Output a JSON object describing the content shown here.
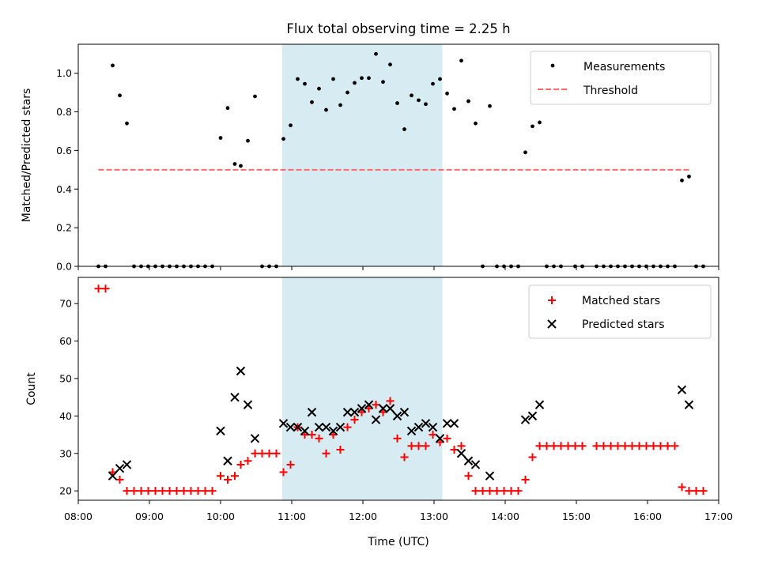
{
  "chart_data": [
    {
      "type": "scatter",
      "title": "Flux total observing time = 2.25 h",
      "xlabel": "",
      "ylabel": "Matched/Predicted stars",
      "xlim": [
        "08:00",
        "17:00"
      ],
      "ylim": [
        0,
        1.15
      ],
      "yticks": [
        0.0,
        0.2,
        0.4,
        0.6,
        0.8,
        1.0
      ],
      "ytick_labels": [
        "0.0",
        "0.2",
        "0.4",
        "0.6",
        "0.8",
        "1.0"
      ],
      "shaded_region": {
        "x": [
          "10:52",
          "13:07"
        ],
        "color": "#add8e6"
      },
      "legend": {
        "placement": "top-right",
        "entries": [
          "Measurements",
          "Threshold"
        ]
      },
      "threshold": {
        "name": "Threshold",
        "x": [
          "08:17",
          "16:37"
        ],
        "y": 0.5,
        "color": "#ff6b6b",
        "style": "dashed"
      },
      "series": [
        {
          "name": "Measurements",
          "color": "#000000",
          "points": [
            [
              "08:17",
              0
            ],
            [
              "08:23",
              0
            ],
            [
              "08:29",
              1.04
            ],
            [
              "08:35",
              0.885
            ],
            [
              "08:41",
              0.74
            ],
            [
              "08:47",
              0
            ],
            [
              "08:53",
              0
            ],
            [
              "08:59",
              0
            ],
            [
              "09:05",
              0
            ],
            [
              "09:11",
              0
            ],
            [
              "09:17",
              0
            ],
            [
              "09:23",
              0
            ],
            [
              "09:29",
              0
            ],
            [
              "09:35",
              0
            ],
            [
              "09:41",
              0
            ],
            [
              "09:47",
              0
            ],
            [
              "09:53",
              0
            ],
            [
              "10:00",
              0.665
            ],
            [
              "10:06",
              0.82
            ],
            [
              "10:12",
              0.53
            ],
            [
              "10:17",
              0.52
            ],
            [
              "10:23",
              0.65
            ],
            [
              "10:29",
              0.88
            ],
            [
              "10:35",
              0
            ],
            [
              "10:41",
              0
            ],
            [
              "10:47",
              0
            ],
            [
              "10:53",
              0.66
            ],
            [
              "10:59",
              0.73
            ],
            [
              "11:05",
              0.97
            ],
            [
              "11:11",
              0.945
            ],
            [
              "11:17",
              0.85
            ],
            [
              "11:23",
              0.92
            ],
            [
              "11:29",
              0.81
            ],
            [
              "11:35",
              0.97
            ],
            [
              "11:41",
              0.835
            ],
            [
              "11:47",
              0.9
            ],
            [
              "11:53",
              0.95
            ],
            [
              "11:59",
              0.975
            ],
            [
              "12:05",
              0.975
            ],
            [
              "12:11",
              1.1
            ],
            [
              "12:17",
              0.955
            ],
            [
              "12:23",
              1.045
            ],
            [
              "12:29",
              0.845
            ],
            [
              "12:35",
              0.71
            ],
            [
              "12:41",
              0.885
            ],
            [
              "12:47",
              0.86
            ],
            [
              "12:53",
              0.84
            ],
            [
              "12:59",
              0.945
            ],
            [
              "13:05",
              0.97
            ],
            [
              "13:11",
              0.895
            ],
            [
              "13:17",
              0.815
            ],
            [
              "13:23",
              1.065
            ],
            [
              "13:29",
              0.855
            ],
            [
              "13:35",
              0.74
            ],
            [
              "13:41",
              0
            ],
            [
              "13:47",
              0.83
            ],
            [
              "13:53",
              0
            ],
            [
              "13:59",
              0
            ],
            [
              "14:05",
              0
            ],
            [
              "14:11",
              0
            ],
            [
              "14:17",
              0.59
            ],
            [
              "14:23",
              0.725
            ],
            [
              "14:29",
              0.745
            ],
            [
              "14:35",
              0
            ],
            [
              "14:41",
              0
            ],
            [
              "14:47",
              0
            ],
            [
              "14:59",
              0
            ],
            [
              "15:05",
              0
            ],
            [
              "15:17",
              0
            ],
            [
              "15:23",
              0
            ],
            [
              "15:29",
              0
            ],
            [
              "15:35",
              0
            ],
            [
              "15:41",
              0
            ],
            [
              "15:47",
              0
            ],
            [
              "15:53",
              0
            ],
            [
              "15:59",
              0
            ],
            [
              "16:05",
              0
            ],
            [
              "16:11",
              0
            ],
            [
              "16:17",
              0
            ],
            [
              "16:23",
              0
            ],
            [
              "16:29",
              0.445
            ],
            [
              "16:35",
              0.465
            ],
            [
              "16:41",
              0
            ],
            [
              "16:47",
              0
            ]
          ]
        }
      ]
    },
    {
      "type": "scatter",
      "title": "",
      "xlabel": "Time (UTC)",
      "ylabel": "Count",
      "xlim": [
        "08:00",
        "17:00"
      ],
      "ylim": [
        17.5,
        77
      ],
      "xticks": [
        "08:00",
        "09:00",
        "10:00",
        "11:00",
        "12:00",
        "13:00",
        "14:00",
        "15:00",
        "16:00",
        "17:00"
      ],
      "yticks": [
        20,
        30,
        40,
        50,
        60,
        70
      ],
      "ytick_labels": [
        "20",
        "30",
        "40",
        "50",
        "60",
        "70"
      ],
      "shaded_region": {
        "x": [
          "10:52",
          "13:07"
        ],
        "color": "#add8e6"
      },
      "legend": {
        "placement": "top-right",
        "entries": [
          "Matched stars",
          "Predicted stars"
        ]
      },
      "series": [
        {
          "name": "Matched stars",
          "marker": "plus",
          "color": "#ff0000",
          "points": [
            [
              "08:17",
              74
            ],
            [
              "08:23",
              74
            ],
            [
              "08:29",
              25
            ],
            [
              "08:35",
              23
            ],
            [
              "08:41",
              20
            ],
            [
              "08:47",
              20
            ],
            [
              "08:53",
              20
            ],
            [
              "08:59",
              20
            ],
            [
              "09:05",
              20
            ],
            [
              "09:11",
              20
            ],
            [
              "09:17",
              20
            ],
            [
              "09:23",
              20
            ],
            [
              "09:29",
              20
            ],
            [
              "09:35",
              20
            ],
            [
              "09:41",
              20
            ],
            [
              "09:47",
              20
            ],
            [
              "09:53",
              20
            ],
            [
              "10:00",
              24
            ],
            [
              "10:06",
              23
            ],
            [
              "10:12",
              24
            ],
            [
              "10:17",
              27
            ],
            [
              "10:23",
              28
            ],
            [
              "10:29",
              30
            ],
            [
              "10:35",
              30
            ],
            [
              "10:41",
              30
            ],
            [
              "10:47",
              30
            ],
            [
              "10:53",
              25
            ],
            [
              "10:59",
              27
            ],
            [
              "11:05",
              37
            ],
            [
              "11:11",
              35
            ],
            [
              "11:17",
              35
            ],
            [
              "11:23",
              34
            ],
            [
              "11:29",
              30
            ],
            [
              "11:35",
              35
            ],
            [
              "11:41",
              31
            ],
            [
              "11:47",
              37
            ],
            [
              "11:53",
              39
            ],
            [
              "11:59",
              41
            ],
            [
              "12:05",
              42
            ],
            [
              "12:11",
              43
            ],
            [
              "12:17",
              41
            ],
            [
              "12:23",
              44
            ],
            [
              "12:29",
              34
            ],
            [
              "12:35",
              29
            ],
            [
              "12:41",
              32
            ],
            [
              "12:47",
              32
            ],
            [
              "12:53",
              32
            ],
            [
              "12:59",
              35
            ],
            [
              "13:05",
              33
            ],
            [
              "13:11",
              34
            ],
            [
              "13:17",
              31
            ],
            [
              "13:23",
              32
            ],
            [
              "13:29",
              24
            ],
            [
              "13:35",
              20
            ],
            [
              "13:41",
              20
            ],
            [
              "13:47",
              20
            ],
            [
              "13:53",
              20
            ],
            [
              "13:59",
              20
            ],
            [
              "14:05",
              20
            ],
            [
              "14:11",
              20
            ],
            [
              "14:17",
              23
            ],
            [
              "14:23",
              29
            ],
            [
              "14:29",
              32
            ],
            [
              "14:35",
              32
            ],
            [
              "14:41",
              32
            ],
            [
              "14:47",
              32
            ],
            [
              "14:53",
              32
            ],
            [
              "14:59",
              32
            ],
            [
              "15:05",
              32
            ],
            [
              "15:17",
              32
            ],
            [
              "15:23",
              32
            ],
            [
              "15:29",
              32
            ],
            [
              "15:35",
              32
            ],
            [
              "15:41",
              32
            ],
            [
              "15:47",
              32
            ],
            [
              "15:53",
              32
            ],
            [
              "15:59",
              32
            ],
            [
              "16:05",
              32
            ],
            [
              "16:11",
              32
            ],
            [
              "16:17",
              32
            ],
            [
              "16:23",
              32
            ],
            [
              "16:29",
              21
            ],
            [
              "16:35",
              20
            ],
            [
              "16:41",
              20
            ],
            [
              "16:47",
              20
            ]
          ]
        },
        {
          "name": "Predicted stars",
          "marker": "x",
          "color": "#000000",
          "points": [
            [
              "08:29",
              24
            ],
            [
              "08:35",
              26
            ],
            [
              "08:41",
              27
            ],
            [
              "10:00",
              36
            ],
            [
              "10:06",
              28
            ],
            [
              "10:12",
              45
            ],
            [
              "10:17",
              52
            ],
            [
              "10:23",
              43
            ],
            [
              "10:29",
              34
            ],
            [
              "10:53",
              38
            ],
            [
              "10:59",
              37
            ],
            [
              "11:05",
              37
            ],
            [
              "11:11",
              36
            ],
            [
              "11:17",
              41
            ],
            [
              "11:23",
              37
            ],
            [
              "11:29",
              37
            ],
            [
              "11:35",
              36
            ],
            [
              "11:41",
              37
            ],
            [
              "11:47",
              41
            ],
            [
              "11:53",
              41
            ],
            [
              "11:59",
              42
            ],
            [
              "12:05",
              43
            ],
            [
              "12:11",
              39
            ],
            [
              "12:17",
              42
            ],
            [
              "12:23",
              42
            ],
            [
              "12:29",
              40
            ],
            [
              "12:35",
              41
            ],
            [
              "12:41",
              36
            ],
            [
              "12:47",
              37
            ],
            [
              "12:53",
              38
            ],
            [
              "12:59",
              37
            ],
            [
              "13:05",
              34
            ],
            [
              "13:11",
              38
            ],
            [
              "13:17",
              38
            ],
            [
              "13:23",
              30
            ],
            [
              "13:29",
              28
            ],
            [
              "13:35",
              27
            ],
            [
              "13:47",
              24
            ],
            [
              "14:17",
              39
            ],
            [
              "14:23",
              40
            ],
            [
              "14:29",
              43
            ],
            [
              "16:29",
              47
            ],
            [
              "16:35",
              43
            ]
          ]
        }
      ]
    }
  ]
}
